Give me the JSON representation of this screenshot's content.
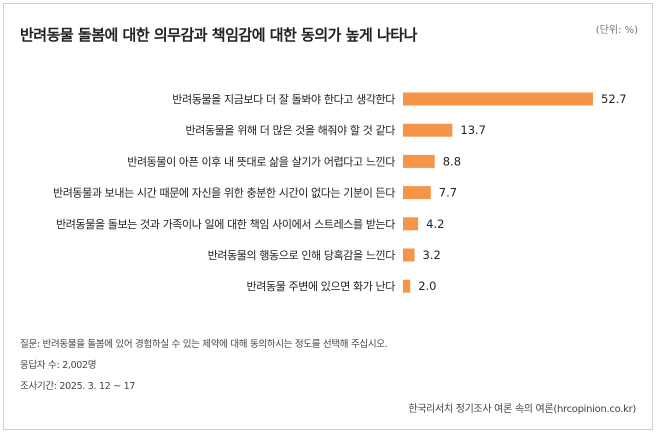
{
  "title": "반려동물 돌봄에 대한 의무감과 책임감에 대한 동의가 높게 나타나",
  "unit": "(단위: %)",
  "chart_data": {
    "type": "bar",
    "orientation": "horizontal",
    "categories": [
      "반려동물을  지금보다 더 잘 돌봐야 한다고 생각한다",
      "반려동물을 위해 더 많은 것을 해줘야 할 것 같다",
      "반려동물이 아픈 이후 내 뜻대로 삶을 살기가 어렵다고 느낀다",
      "반려동물과 보내는 시간 때문에 자신을 위한 충분한 시간이 없다는 기분이 든다",
      "반려동물을 돌보는 것과 가족이나 일에 대한 책임 사이에서 스트레스를 받는다",
      "반려동물의 행동으로 인해 당혹감을 느낀다",
      "반려동물 주변에 있으면 화가 난다"
    ],
    "value_labels": [
      "52.7",
      "13.7",
      "8.8",
      "7.7",
      "4.2",
      "3.2",
      "2.0"
    ],
    "values": [
      52.7,
      13.7,
      8.8,
      7.7,
      4.2,
      3.2,
      2.0
    ],
    "bar_color": "#f5954a",
    "xlim": [
      0,
      52.7
    ],
    "grid": false,
    "legend": "none"
  },
  "notes": {
    "question": "질문: 반려동물을 돌봄에 있어 경험하실 수 있는 제약에 대해 동의하시는 정도를 선택해 주십시오.",
    "respondents": "응답자 수: 2,002명",
    "period": "조사기간: 2025. 3. 12 ~ 17"
  },
  "source": "한국리서치 정기조사 여론 속의 여론(hrcopinion.co.kr)"
}
